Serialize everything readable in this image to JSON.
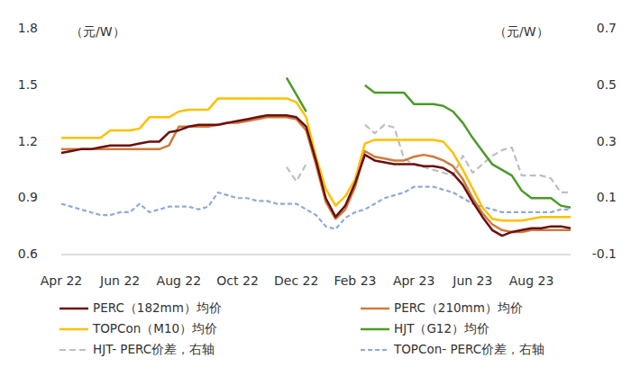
{
  "chart_data": {
    "type": "line",
    "ylabel": "（元/W）",
    "y2label": "（元/W）",
    "categories": [
      "Apr 22",
      null,
      null,
      null,
      null,
      null,
      "Jun 22",
      null,
      null,
      null,
      null,
      null,
      "Aug 22",
      null,
      null,
      null,
      null,
      null,
      "Oct 22",
      null,
      null,
      null,
      null,
      null,
      "Dec 22",
      null,
      null,
      null,
      null,
      null,
      "Feb 23",
      null,
      null,
      null,
      null,
      null,
      "Apr 23",
      null,
      null,
      null,
      null,
      null,
      "Jun 23",
      null,
      null,
      null,
      null,
      null,
      "Aug 23",
      null,
      null,
      null,
      null
    ],
    "ylim": [
      0.6,
      1.8
    ],
    "yticks": [
      0.6,
      0.9,
      1.2,
      1.5,
      1.8
    ],
    "y2lim": [
      -0.1,
      0.7
    ],
    "y2ticks": [
      -0.1,
      0.1,
      0.3,
      0.5,
      0.7
    ],
    "grid": false,
    "legend": "bottom",
    "series": [
      {
        "name": "PERC（182mm）均价",
        "color": "#6B0F0F",
        "line_style": "solid",
        "values": [
          1.14,
          1.15,
          1.16,
          1.16,
          1.17,
          1.18,
          1.18,
          1.18,
          1.19,
          1.2,
          1.2,
          1.25,
          1.26,
          1.28,
          1.29,
          1.29,
          1.29,
          1.3,
          1.31,
          1.32,
          1.33,
          1.34,
          1.34,
          1.34,
          1.33,
          1.28,
          1.1,
          0.9,
          0.8,
          0.86,
          0.98,
          1.13,
          1.1,
          1.09,
          1.08,
          1.08,
          1.08,
          1.07,
          1.07,
          1.06,
          1.03,
          0.97,
          0.88,
          0.8,
          0.73,
          0.7,
          0.72,
          0.73,
          0.74,
          0.74,
          0.75,
          0.75,
          0.74
        ]
      },
      {
        "name": "PERC（210mm）均价",
        "color": "#D07A3C",
        "line_style": "solid",
        "values": [
          1.16,
          1.16,
          1.16,
          1.16,
          1.16,
          1.16,
          1.16,
          1.16,
          1.16,
          1.16,
          1.16,
          1.18,
          1.28,
          1.28,
          1.28,
          1.28,
          1.29,
          1.3,
          1.3,
          1.31,
          1.32,
          1.33,
          1.33,
          1.33,
          1.32,
          1.26,
          1.08,
          0.88,
          0.79,
          0.84,
          0.96,
          1.15,
          1.12,
          1.11,
          1.1,
          1.1,
          1.12,
          1.13,
          1.12,
          1.1,
          1.07,
          1.0,
          0.9,
          0.82,
          0.76,
          0.73,
          0.72,
          0.72,
          0.73,
          0.73,
          0.73,
          0.73,
          0.73
        ]
      },
      {
        "name": "TOPCon（M10）均价",
        "color": "#FFC000",
        "line_style": "solid",
        "values": [
          1.22,
          1.22,
          1.22,
          1.22,
          1.22,
          1.26,
          1.26,
          1.26,
          1.27,
          1.33,
          1.33,
          1.33,
          1.36,
          1.37,
          1.37,
          1.37,
          1.43,
          1.43,
          1.43,
          1.43,
          1.43,
          1.43,
          1.43,
          1.43,
          1.41,
          1.33,
          1.12,
          0.95,
          0.86,
          0.91,
          1.0,
          1.19,
          1.21,
          1.21,
          1.21,
          1.21,
          1.21,
          1.21,
          1.21,
          1.2,
          1.14,
          1.05,
          0.95,
          0.85,
          0.79,
          0.78,
          0.78,
          0.78,
          0.79,
          0.8,
          0.8,
          0.8,
          0.8
        ]
      },
      {
        "name": "HJT（G12）均价",
        "color": "#4C9A2A",
        "line_style": "solid",
        "values": [
          null,
          null,
          null,
          null,
          null,
          null,
          null,
          null,
          null,
          null,
          null,
          null,
          null,
          null,
          null,
          null,
          null,
          null,
          null,
          null,
          null,
          null,
          null,
          1.54,
          1.45,
          1.36,
          null,
          null,
          null,
          null,
          null,
          1.5,
          1.46,
          1.46,
          1.46,
          1.46,
          1.4,
          1.4,
          1.4,
          1.39,
          1.36,
          1.3,
          1.22,
          1.15,
          1.08,
          1.05,
          1.02,
          0.94,
          0.9,
          0.9,
          0.9,
          0.86,
          0.85
        ]
      },
      {
        "name": "HJT- PERC价差，右轴",
        "color": "#BFBFBF",
        "line_style": "dashed",
        "axis": "y2",
        "values": [
          null,
          null,
          null,
          null,
          null,
          null,
          null,
          null,
          null,
          null,
          null,
          null,
          null,
          null,
          null,
          null,
          null,
          null,
          null,
          null,
          null,
          null,
          null,
          0.21,
          0.16,
          0.22,
          null,
          null,
          null,
          null,
          null,
          0.36,
          0.33,
          0.36,
          0.35,
          0.24,
          0.22,
          0.21,
          0.2,
          0.19,
          0.18,
          0.25,
          0.19,
          0.22,
          0.25,
          0.27,
          0.28,
          0.18,
          0.18,
          0.18,
          0.17,
          0.12,
          0.12
        ]
      },
      {
        "name": "TOPCon- PERC价差，右轴",
        "color": "#8EA9DB",
        "line_style": "dashed",
        "axis": "y2",
        "values": [
          0.08,
          0.07,
          0.06,
          0.05,
          0.04,
          0.04,
          0.05,
          0.05,
          0.08,
          0.05,
          0.06,
          0.07,
          0.07,
          0.07,
          0.06,
          0.07,
          0.12,
          0.11,
          0.1,
          0.1,
          0.09,
          0.09,
          0.08,
          0.08,
          0.08,
          0.06,
          0.04,
          0.0,
          -0.01,
          0.03,
          0.05,
          0.06,
          0.08,
          0.1,
          0.11,
          0.12,
          0.14,
          0.14,
          0.14,
          0.13,
          0.12,
          0.1,
          0.08,
          0.07,
          0.06,
          0.05,
          0.05,
          0.05,
          0.05,
          0.05,
          0.05,
          0.06,
          0.06
        ]
      }
    ]
  }
}
